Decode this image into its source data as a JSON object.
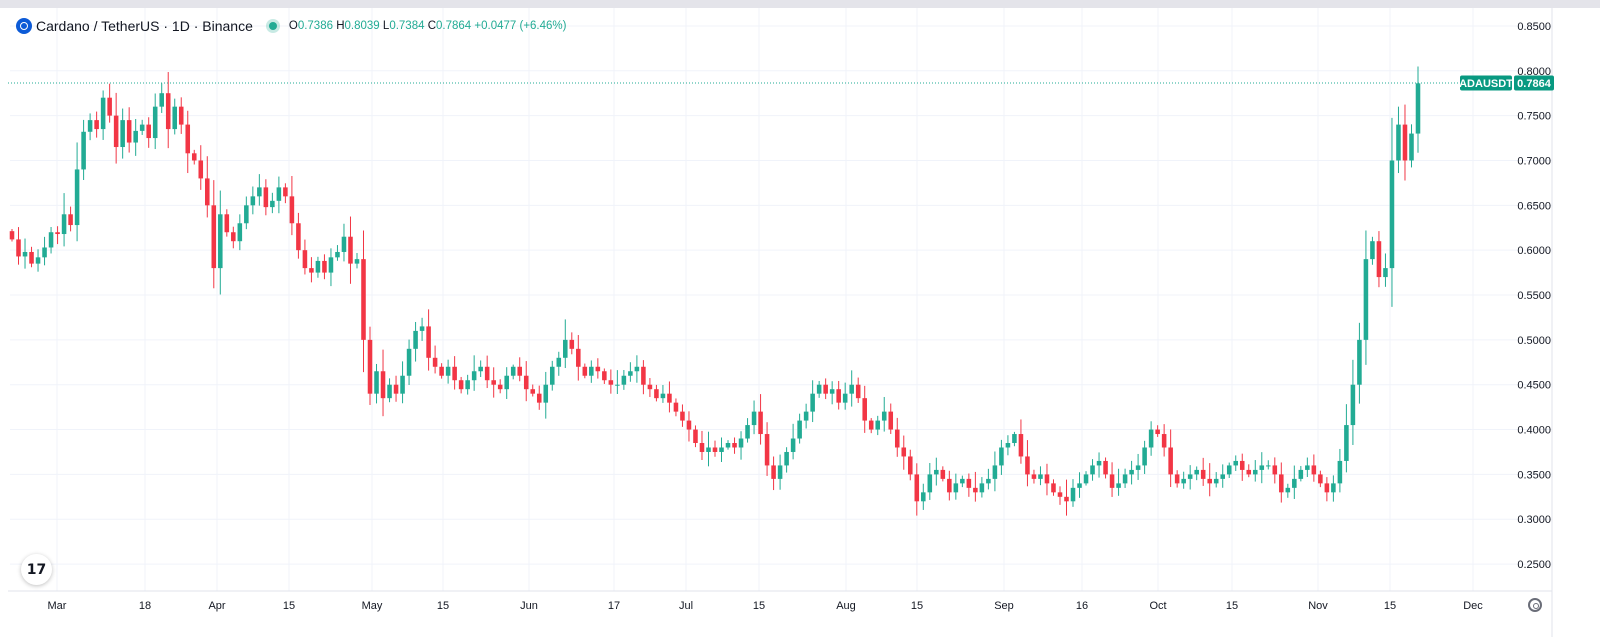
{
  "legend": {
    "symbol": "Cardano / TetherUS · 1D · Binance",
    "open_key": "O",
    "open": "0.7386",
    "high_key": "H",
    "high": "0.8039",
    "low_key": "L",
    "low": "0.7384",
    "close_key": "C",
    "close": "0.7864",
    "change": "+0.0477 (+6.46%)"
  },
  "price_tag": {
    "ticker": "ADAUSDT",
    "price": "0.7864"
  },
  "tv_logo_text": "17",
  "colors": {
    "up": "#22ab94",
    "down": "#f23645",
    "grid": "#f0f3fa",
    "text": "#131722",
    "tag": "#089981"
  },
  "chart_data": {
    "type": "candlestick",
    "title": "Cardano / TetherUS · 1D · Binance",
    "y_ticks": [
      "0.8500",
      "0.8000",
      "0.7500",
      "0.7000",
      "0.6500",
      "0.6000",
      "0.5500",
      "0.5000",
      "0.4500",
      "0.4000",
      "0.3500",
      "0.3000",
      "0.2500"
    ],
    "ylim": [
      0.22,
      0.87
    ],
    "x_ticks": [
      "Mar",
      "18",
      "Apr",
      "15",
      "May",
      "15",
      "Jun",
      "17",
      "Jul",
      "15",
      "Aug",
      "15",
      "Sep",
      "16",
      "Oct",
      "15",
      "Nov",
      "15",
      "Dec"
    ],
    "last_price": 0.7864,
    "grid": true,
    "closes": [
      0.612,
      0.593,
      0.598,
      0.585,
      0.592,
      0.603,
      0.62,
      0.618,
      0.64,
      0.628,
      0.69,
      0.732,
      0.745,
      0.735,
      0.77,
      0.75,
      0.715,
      0.745,
      0.72,
      0.733,
      0.74,
      0.725,
      0.76,
      0.775,
      0.735,
      0.76,
      0.74,
      0.708,
      0.7,
      0.68,
      0.65,
      0.58,
      0.64,
      0.62,
      0.61,
      0.63,
      0.65,
      0.66,
      0.67,
      0.648,
      0.655,
      0.67,
      0.66,
      0.63,
      0.6,
      0.58,
      0.575,
      0.588,
      0.575,
      0.592,
      0.598,
      0.615,
      0.585,
      0.59,
      0.5,
      0.44,
      0.465,
      0.435,
      0.45,
      0.44,
      0.46,
      0.49,
      0.51,
      0.515,
      0.48,
      0.47,
      0.46,
      0.47,
      0.455,
      0.445,
      0.455,
      0.465,
      0.47,
      0.455,
      0.45,
      0.445,
      0.46,
      0.47,
      0.46,
      0.445,
      0.44,
      0.43,
      0.45,
      0.47,
      0.48,
      0.5,
      0.49,
      0.47,
      0.46,
      0.47,
      0.465,
      0.455,
      0.45,
      0.45,
      0.46,
      0.465,
      0.47,
      0.45,
      0.445,
      0.435,
      0.44,
      0.43,
      0.42,
      0.41,
      0.4,
      0.385,
      0.375,
      0.38,
      0.375,
      0.38,
      0.385,
      0.38,
      0.39,
      0.405,
      0.42,
      0.395,
      0.36,
      0.345,
      0.36,
      0.375,
      0.39,
      0.41,
      0.42,
      0.44,
      0.45,
      0.44,
      0.445,
      0.43,
      0.44,
      0.45,
      0.435,
      0.41,
      0.4,
      0.41,
      0.42,
      0.4,
      0.38,
      0.37,
      0.35,
      0.32,
      0.33,
      0.35,
      0.355,
      0.345,
      0.33,
      0.34,
      0.345,
      0.335,
      0.33,
      0.34,
      0.345,
      0.36,
      0.38,
      0.385,
      0.395,
      0.37,
      0.35,
      0.345,
      0.35,
      0.34,
      0.33,
      0.325,
      0.32,
      0.335,
      0.34,
      0.35,
      0.36,
      0.365,
      0.35,
      0.335,
      0.34,
      0.35,
      0.355,
      0.36,
      0.38,
      0.4,
      0.395,
      0.38,
      0.35,
      0.34,
      0.345,
      0.35,
      0.355,
      0.345,
      0.34,
      0.345,
      0.35,
      0.36,
      0.365,
      0.355,
      0.35,
      0.355,
      0.36,
      0.36,
      0.35,
      0.33,
      0.335,
      0.345,
      0.355,
      0.36,
      0.35,
      0.34,
      0.33,
      0.34,
      0.365,
      0.405,
      0.45,
      0.5,
      0.59,
      0.61,
      0.57,
      0.58,
      0.7,
      0.74,
      0.7,
      0.73,
      0.786
    ]
  }
}
